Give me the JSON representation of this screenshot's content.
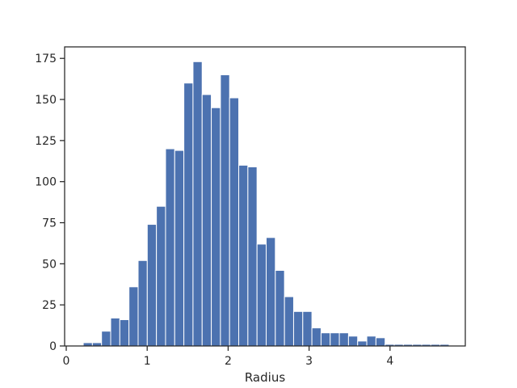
{
  "chart_data": {
    "type": "bar",
    "subtype": "histogram",
    "title": "",
    "xlabel": "Radius",
    "ylabel": "",
    "xlim": [
      -0.02,
      4.93
    ],
    "ylim": [
      0,
      182
    ],
    "xticks": [
      0,
      1,
      2,
      3,
      4
    ],
    "yticks": [
      0,
      25,
      50,
      75,
      100,
      125,
      150,
      175
    ],
    "grid": false,
    "bar_color": "#4c72b0",
    "bin_edges": [
      0.21,
      0.323,
      0.436,
      0.549,
      0.662,
      0.775,
      0.888,
      1.001,
      1.114,
      1.227,
      1.34,
      1.453,
      1.566,
      1.679,
      1.792,
      1.905,
      2.018,
      2.131,
      2.244,
      2.357,
      2.47,
      2.583,
      2.696,
      2.809,
      2.922,
      3.035,
      3.148,
      3.261,
      3.374,
      3.487,
      3.6,
      3.713,
      3.826,
      3.939,
      4.052,
      4.165,
      4.278,
      4.391,
      4.504,
      4.617,
      4.73
    ],
    "counts": [
      2,
      2,
      9,
      17,
      16,
      36,
      52,
      74,
      85,
      120,
      119,
      160,
      173,
      153,
      145,
      165,
      151,
      110,
      109,
      62,
      66,
      46,
      30,
      21,
      21,
      11,
      8,
      8,
      8,
      6,
      3,
      6,
      5,
      1,
      1,
      1,
      1,
      1,
      1,
      1
    ]
  }
}
